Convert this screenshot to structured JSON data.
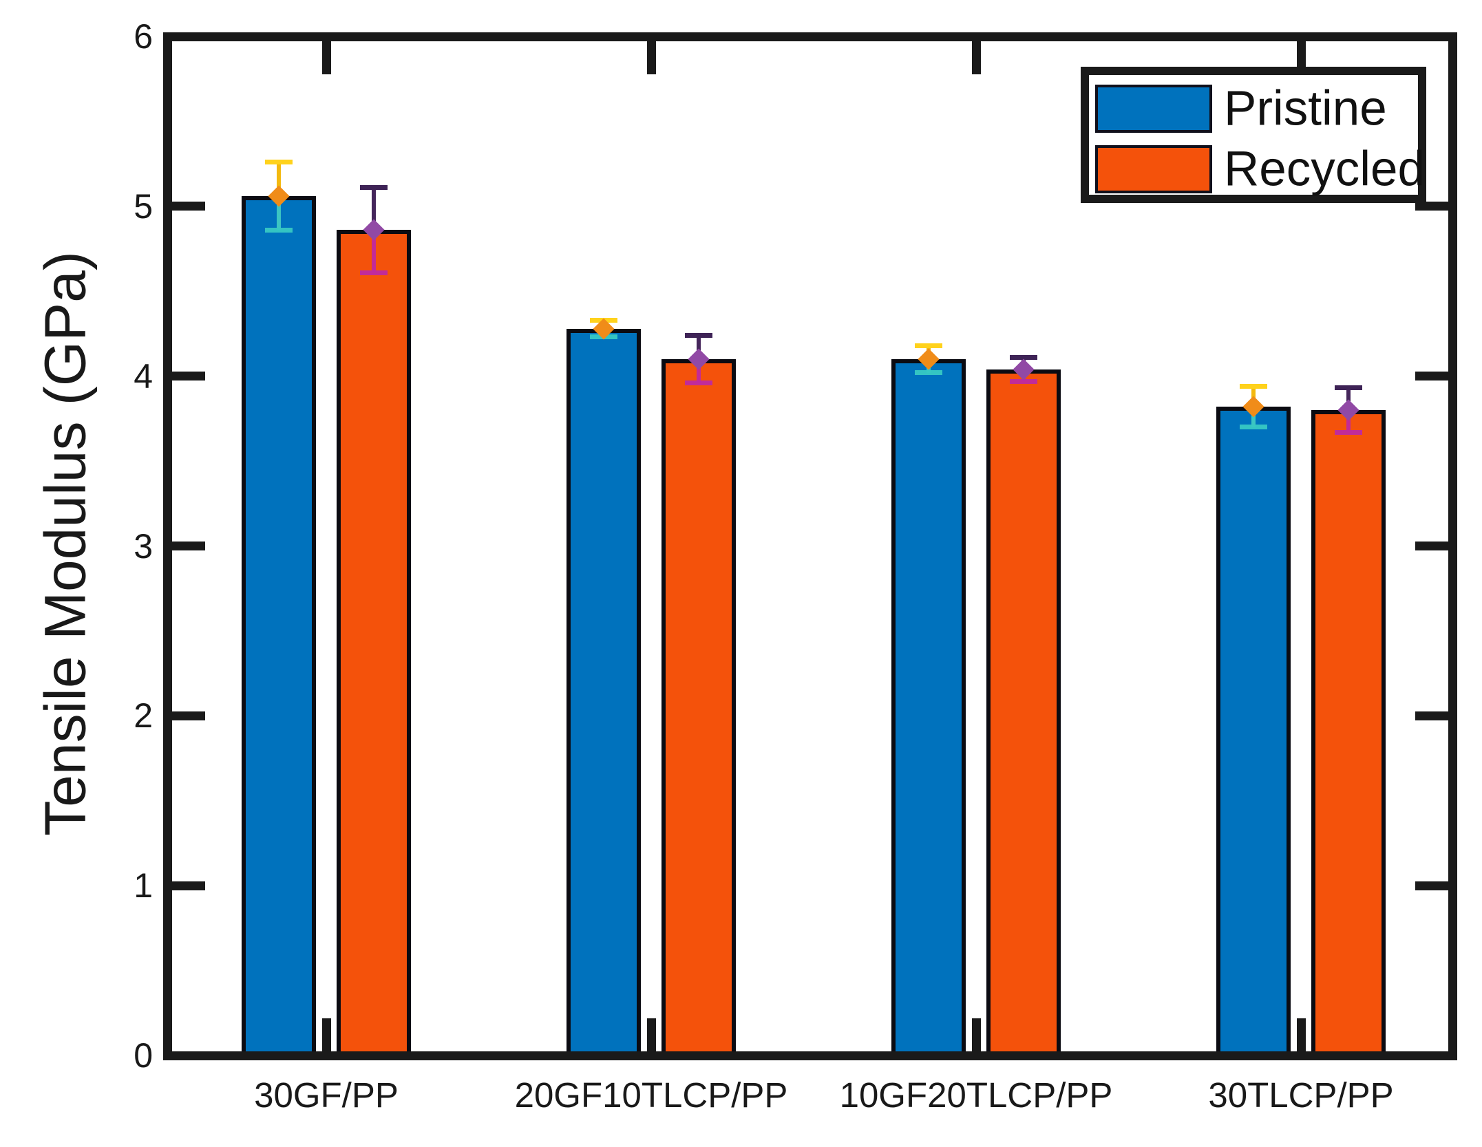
{
  "chart_data": {
    "type": "bar",
    "title": "",
    "xlabel": "",
    "ylabel": "Tensile Modulus (GPa)",
    "ylim": [
      0,
      6
    ],
    "yticks": [
      0,
      1,
      2,
      3,
      4,
      5,
      6
    ],
    "grid": false,
    "legend_position": "top-right",
    "categories": [
      "30GF/PP",
      "20GF10TLCP/PP",
      "10GF20TLCP/PP",
      "30TLCP/PP"
    ],
    "series": [
      {
        "name": "Pristine",
        "color": "#0072BD",
        "edge_color": "#0b0b12",
        "values": [
          5.06,
          4.28,
          4.1,
          3.82
        ],
        "errors": [
          0.2,
          0.05,
          0.08,
          0.12
        ],
        "error_style": {
          "stem_upper": "#F3B90F",
          "cap_upper": "#FFD21C",
          "stem_lower": "#3FC9C2",
          "cap_lower": "#37C8C3",
          "marker": "#F08C19"
        }
      },
      {
        "name": "Recycled",
        "color": "#F4520B",
        "edge_color": "#0b0b12",
        "values": [
          4.86,
          4.1,
          4.04,
          3.8
        ],
        "errors": [
          0.25,
          0.14,
          0.07,
          0.13
        ],
        "error_style": {
          "stem_upper": "#45265B",
          "cap_upper": "#3E2356",
          "stem_lower": "#C0299E",
          "cap_lower": "#BE2AA0",
          "marker": "#9149A5"
        }
      }
    ],
    "axis_color": "#1a1a1a",
    "background_color": "#ffffff"
  }
}
